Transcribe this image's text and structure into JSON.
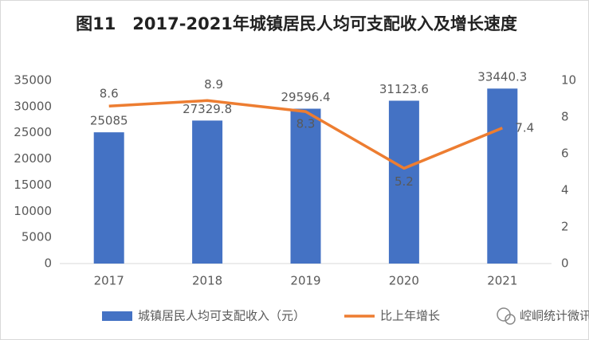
{
  "chart_data": {
    "type": "bar",
    "title": "图11　2017-2021年城镇居民人均可支配收入及增长速度",
    "categories": [
      "2017",
      "2018",
      "2019",
      "2020",
      "2021"
    ],
    "series": [
      {
        "name": "城镇居民人均可支配收入（元）",
        "color": "#4472c4",
        "values": [
          25085,
          27329.8,
          29596.4,
          31123.6,
          33440.3
        ]
      },
      {
        "name": "比上年增长",
        "color": "#ed7d31",
        "type": "line",
        "axis": "y2",
        "values": [
          8.6,
          8.9,
          8.3,
          5.2,
          7.4
        ]
      }
    ],
    "ylim": [
      0,
      35000
    ],
    "yticks": [
      0,
      5000,
      10000,
      15000,
      20000,
      25000,
      30000,
      35000
    ],
    "y2lim": [
      0,
      10
    ],
    "y2ticks": [
      0,
      2,
      4,
      6,
      8,
      10
    ],
    "grid": false,
    "legend": "bottom",
    "watermark": "崆峒统计微讯"
  }
}
